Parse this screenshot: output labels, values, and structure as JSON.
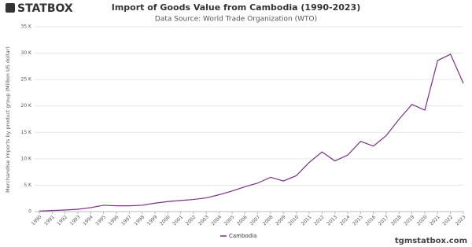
{
  "logo": "STATBOX",
  "watermark": "tgmstatbox.com",
  "chart_data": {
    "type": "line",
    "title": "Import of Goods Value from Cambodia (1990-2023)",
    "subtitle": "Data Source: World Trade Organization (WTO)",
    "y_label": "Merchandise imports by product group (Million US dollar)",
    "x": [
      1990,
      1991,
      1992,
      1993,
      1994,
      1995,
      1996,
      1997,
      1998,
      1999,
      2000,
      2001,
      2002,
      2003,
      2004,
      2005,
      2006,
      2007,
      2008,
      2009,
      2010,
      2011,
      2012,
      2013,
      2014,
      2015,
      2016,
      2017,
      2018,
      2019,
      2020,
      2021,
      2022,
      2023
    ],
    "xlim": [
      1990,
      2023
    ],
    "ylim": [
      0,
      35000
    ],
    "yticks": [
      {
        "value": 0,
        "label": "0"
      },
      {
        "value": 5000,
        "label": "5 K"
      },
      {
        "value": 10000,
        "label": "10 K"
      },
      {
        "value": 15000,
        "label": "15 K"
      },
      {
        "value": 20000,
        "label": "20 K"
      },
      {
        "value": 25000,
        "label": "25 K"
      },
      {
        "value": 30000,
        "label": "30 K"
      },
      {
        "value": 35000,
        "label": "35 K"
      }
    ],
    "grid": true,
    "legend": "bottom",
    "series": [
      {
        "name": "Cambodia",
        "color": "#7b2f86",
        "values": [
          100,
          200,
          300,
          450,
          750,
          1200,
          1100,
          1100,
          1200,
          1600,
          1900,
          2100,
          2300,
          2600,
          3200,
          3900,
          4700,
          5400,
          6500,
          5800,
          6800,
          9300,
          11300,
          9600,
          10700,
          13300,
          12400,
          14400,
          17500,
          20300,
          19200,
          28600,
          29800,
          24300
        ]
      }
    ]
  }
}
